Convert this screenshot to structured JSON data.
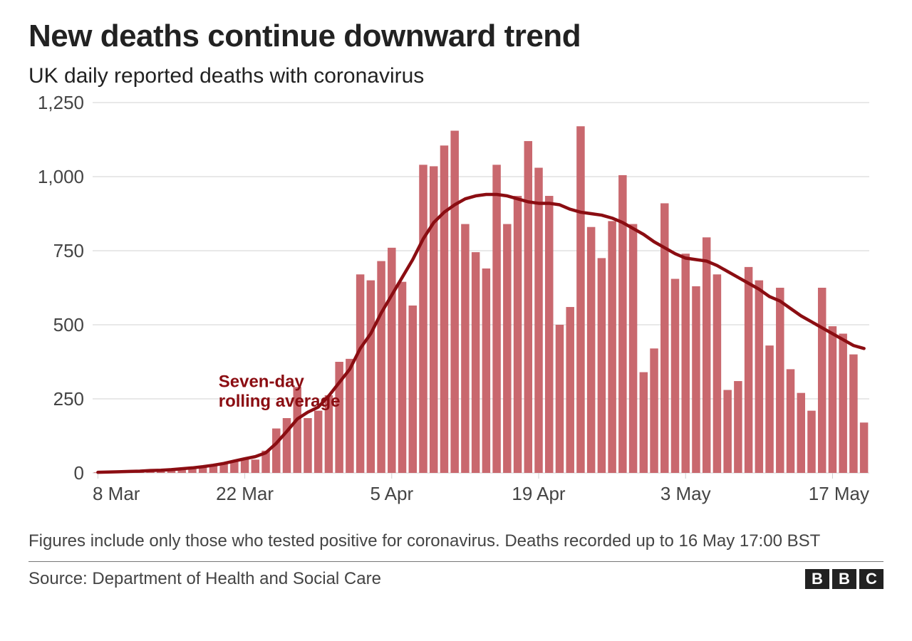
{
  "title": "New deaths continue downward trend",
  "subtitle": "UK daily reported deaths with coronavirus",
  "footnote": "Figures include only those who tested positive for coronavirus. Deaths recorded up to 16 May 17:00 BST",
  "source": "Source: Department of Health and Social Care",
  "logo": {
    "b1": "B",
    "b2": "B",
    "b3": "C"
  },
  "annotation": {
    "line1": "Seven-day",
    "line2": "rolling average",
    "color": "#8b0d12",
    "fontsize": 24,
    "fontweight": "700",
    "x_index": 12,
    "y_value": 290
  },
  "chart": {
    "type": "bar_with_line",
    "background_color": "#ffffff",
    "grid_color": "#d0d0d0",
    "axis_label_color": "#444444",
    "axis_label_fontsize": 26,
    "bar_color": "#c9686e",
    "bar_gap_ratio": 0.22,
    "line_color": "#8b0d12",
    "line_width": 4.5,
    "ylim": [
      0,
      1250
    ],
    "yticks": [
      0,
      250,
      500,
      750,
      1000,
      1250
    ],
    "ytick_labels": [
      "0",
      "250",
      "500",
      "750",
      "1,000",
      "1,250"
    ],
    "xtick_indices": [
      0,
      14,
      28,
      42,
      56,
      70
    ],
    "xtick_labels": [
      "8 Mar",
      "22 Mar",
      "5 Apr",
      "19 Apr",
      "3 May",
      "17 May"
    ],
    "bars": [
      2,
      3,
      5,
      6,
      7,
      9,
      10,
      12,
      15,
      18,
      22,
      28,
      34,
      42,
      50,
      45,
      75,
      150,
      185,
      290,
      185,
      210,
      262,
      375,
      385,
      670,
      650,
      715,
      760,
      645,
      565,
      1040,
      1035,
      1105,
      1155,
      840,
      745,
      690,
      1040,
      840,
      935,
      1120,
      1030,
      935,
      500,
      560,
      1170,
      830,
      725,
      850,
      1005,
      840,
      340,
      420,
      910,
      655,
      740,
      630,
      795,
      670,
      280,
      310,
      695,
      650,
      430,
      625,
      350,
      270,
      210,
      625,
      495,
      470,
      400,
      170
    ],
    "line": [
      2,
      3,
      4,
      5,
      6,
      8,
      9,
      11,
      14,
      17,
      21,
      26,
      32,
      40,
      48,
      55,
      68,
      100,
      140,
      182,
      205,
      222,
      260,
      305,
      350,
      420,
      470,
      540,
      600,
      660,
      720,
      790,
      845,
      880,
      905,
      925,
      935,
      940,
      940,
      935,
      925,
      915,
      910,
      910,
      905,
      890,
      880,
      875,
      870,
      860,
      845,
      825,
      805,
      780,
      760,
      740,
      725,
      720,
      715,
      700,
      680,
      660,
      640,
      620,
      595,
      580,
      555,
      530,
      510,
      490,
      470,
      450,
      430,
      420
    ]
  }
}
